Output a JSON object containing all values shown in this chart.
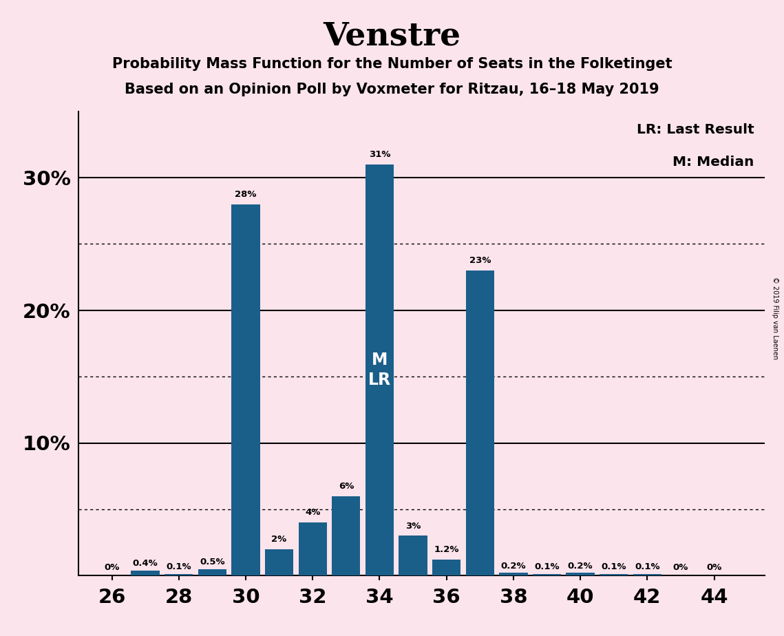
{
  "title": "Venstre",
  "subtitle1": "Probability Mass Function for the Number of Seats in the Folketinget",
  "subtitle2": "Based on an Opinion Poll by Voxmeter for Ritzau, 16–18 May 2019",
  "copyright": "© 2019 Filip van Laenen",
  "seats": [
    26,
    27,
    28,
    29,
    30,
    31,
    32,
    33,
    34,
    35,
    36,
    37,
    38,
    39,
    40,
    41,
    42,
    43,
    44
  ],
  "probabilities": [
    0.0,
    0.4,
    0.1,
    0.5,
    28.0,
    2.0,
    4.0,
    6.0,
    31.0,
    3.0,
    1.2,
    23.0,
    0.2,
    0.1,
    0.2,
    0.1,
    0.1,
    0.0,
    0.0
  ],
  "labels": [
    "0%",
    "0.4%",
    "0.1%",
    "0.5%",
    "28%",
    "2%",
    "4%",
    "6%",
    "31%",
    "3%",
    "1.2%",
    "23%",
    "0.2%",
    "0.1%",
    "0.2%",
    "0.1%",
    "0.1%",
    "0%",
    "0%"
  ],
  "bar_color": "#1a5f8a",
  "background_color": "#fce4ec",
  "median_seat": 34,
  "last_result_seat": 34,
  "legend_lr": "LR: Last Result",
  "legend_m": "M: Median",
  "xlim": [
    25.0,
    45.5
  ],
  "ylim": [
    0,
    35
  ],
  "xtick_positions": [
    26,
    28,
    30,
    32,
    34,
    36,
    38,
    40,
    42,
    44
  ],
  "solid_line_y": [
    10,
    20,
    30
  ],
  "dotted_line_y": [
    5,
    15,
    25
  ],
  "bar_width": 0.85
}
